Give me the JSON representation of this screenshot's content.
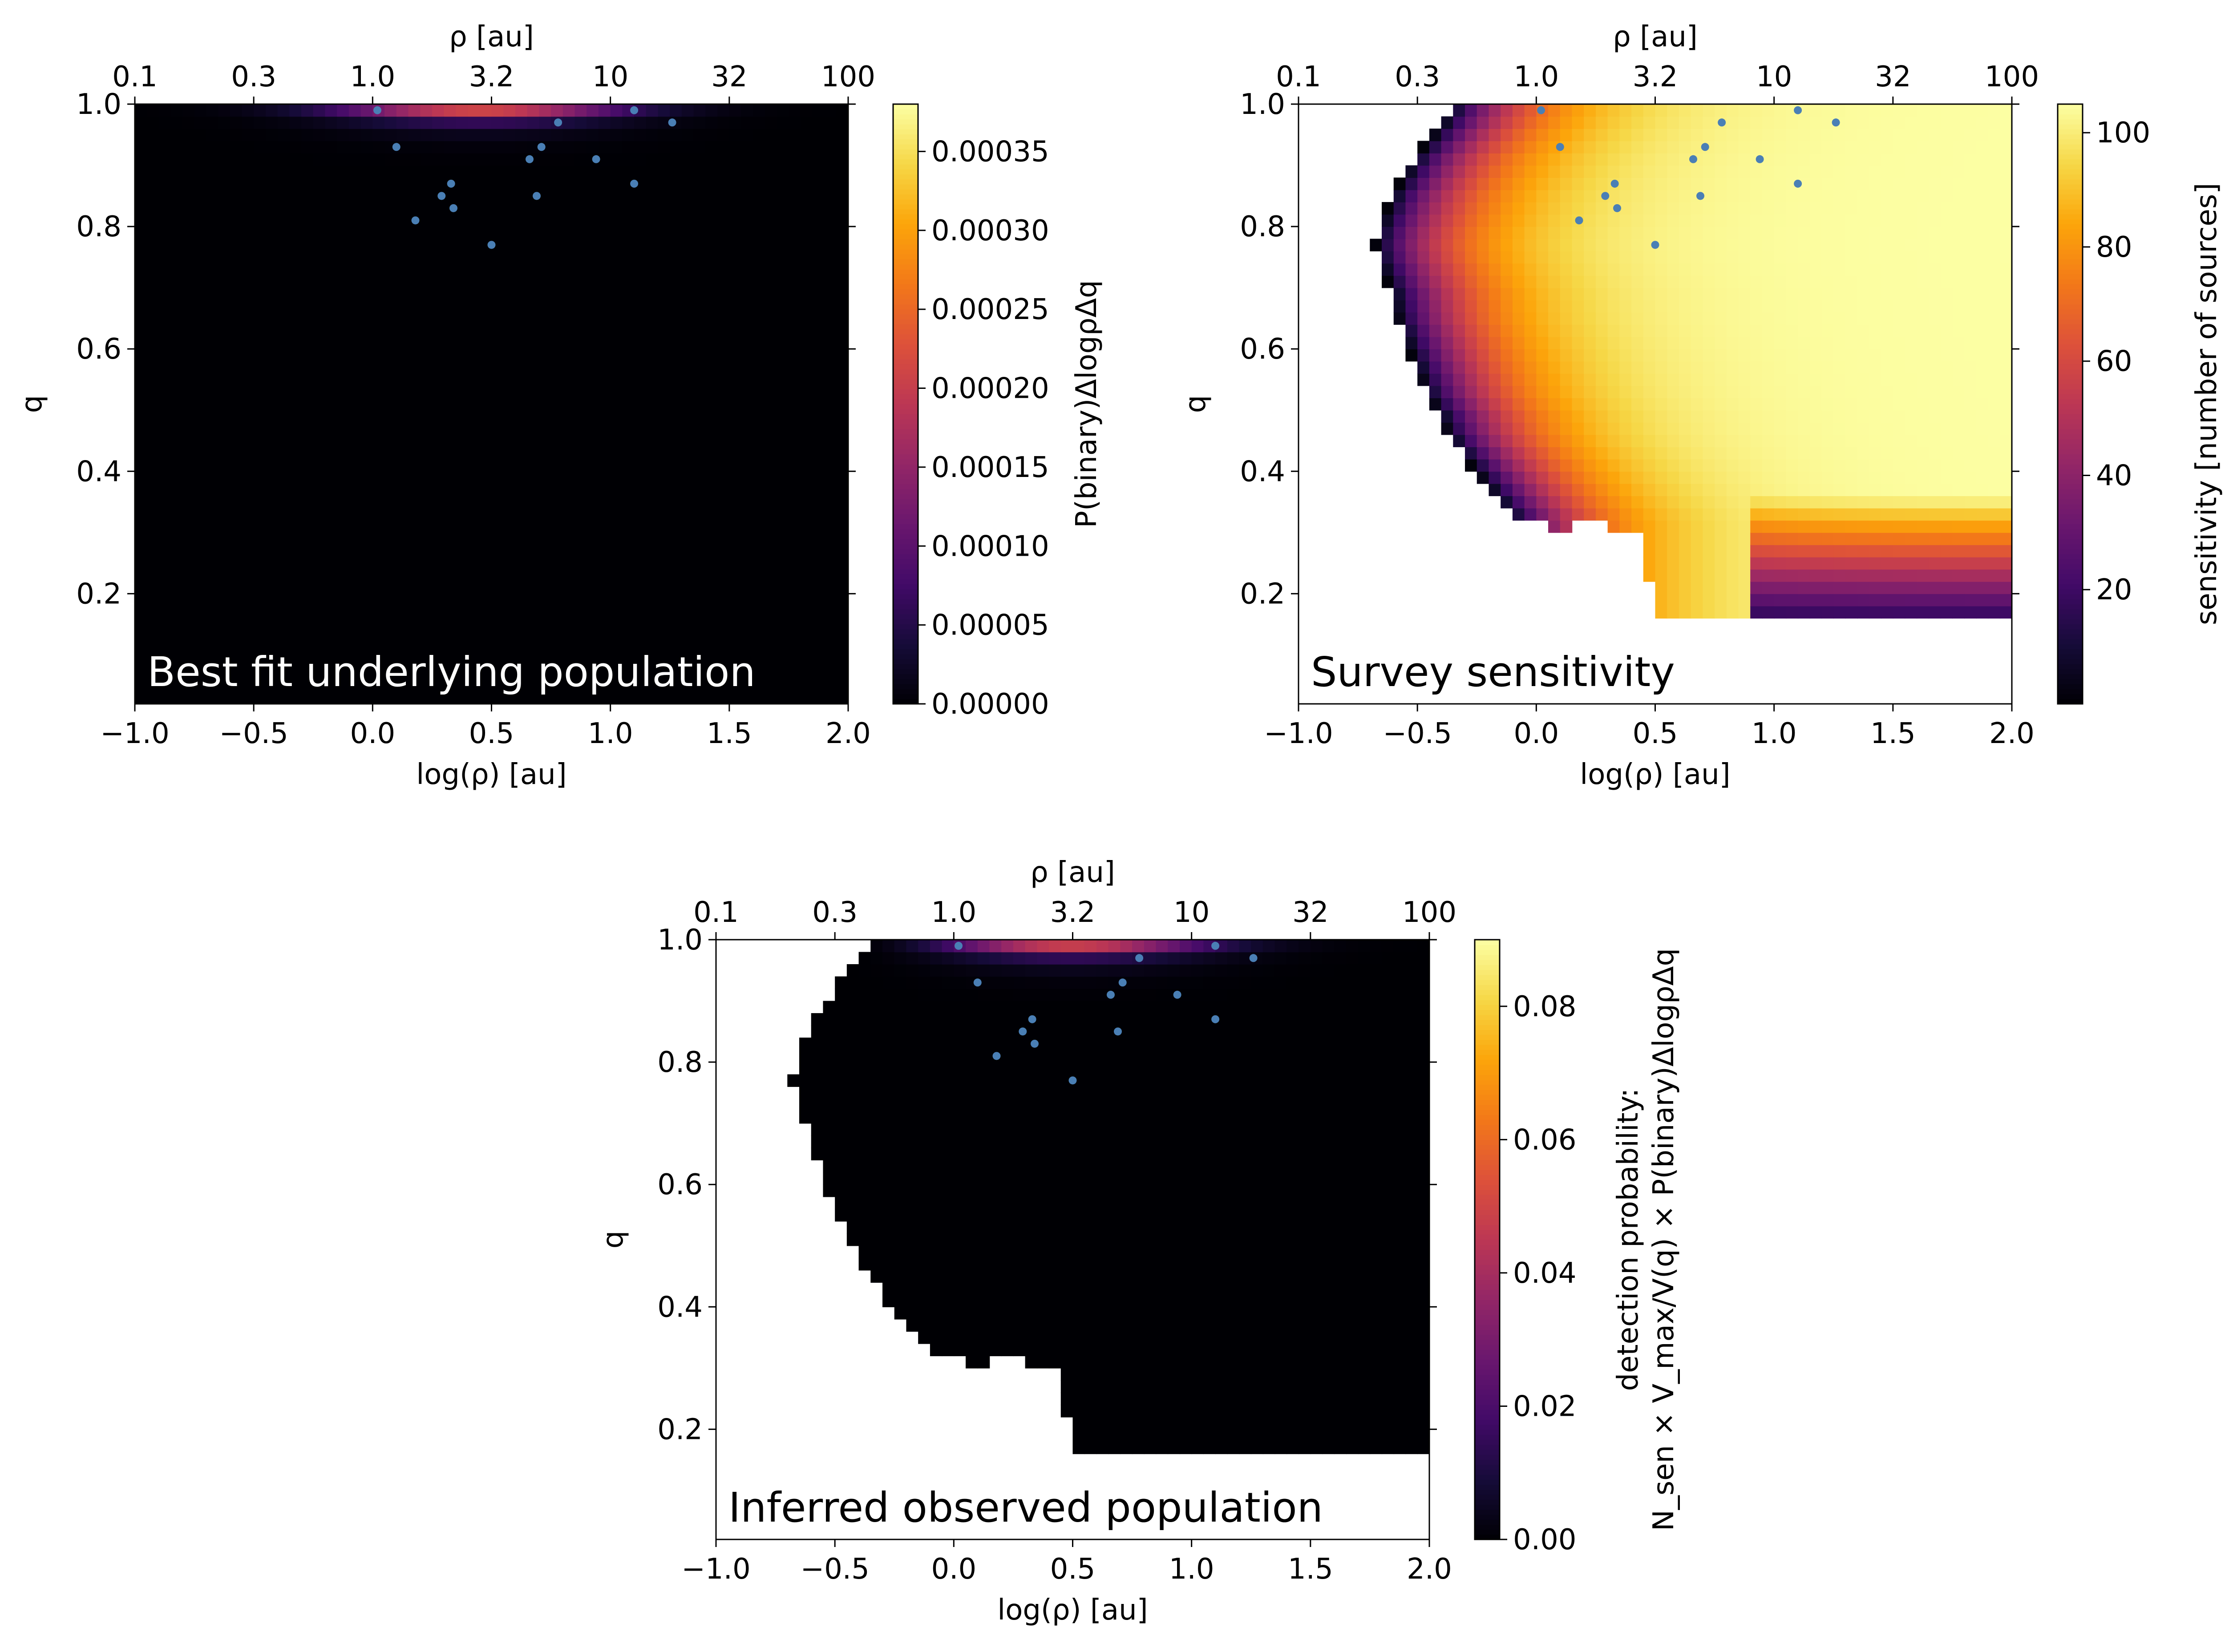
{
  "chart_data": [
    {
      "type": "heatmap",
      "panel_label": "Best fit underlying population",
      "xlabel": "log(ρ) [au]",
      "ylabel": "q",
      "top_xlabel": "ρ [au]",
      "xlim": [
        -1.0,
        2.0
      ],
      "ylim": [
        0.02,
        1.0
      ],
      "x_ticks": [
        "−1.0",
        "−0.5",
        "0.0",
        "0.5",
        "1.0",
        "1.5",
        "2.0"
      ],
      "x_tick_values": [
        -1.0,
        -0.5,
        0.0,
        0.5,
        1.0,
        1.5,
        2.0
      ],
      "top_ticks": [
        "0.1",
        "0.3",
        "1.0",
        "3.2",
        "10",
        "32",
        "100"
      ],
      "y_ticks": [
        "0.2",
        "0.4",
        "0.6",
        "0.8",
        "1.0"
      ],
      "y_tick_values": [
        0.2,
        0.4,
        0.6,
        0.8,
        1.0
      ],
      "colorbar": {
        "label": "P(binary)ΔlogρΔq",
        "range": [
          0.0,
          0.00038
        ],
        "ticks": [
          "0.00000",
          "0.00005",
          "0.00010",
          "0.00015",
          "0.00020",
          "0.00025",
          "0.00030",
          "0.00035"
        ],
        "tick_values": [
          0.0,
          5e-05,
          0.0001,
          0.00015,
          0.0002,
          0.00025,
          0.0003,
          0.00035
        ]
      },
      "model": {
        "peak": 0.00038,
        "log_rho_center": 0.45,
        "log_rho_sigma": 0.42,
        "q_power": 60
      },
      "points": [
        {
          "x": 0.02,
          "y": 0.99
        },
        {
          "x": 0.1,
          "y": 0.93
        },
        {
          "x": 0.18,
          "y": 0.81
        },
        {
          "x": 0.29,
          "y": 0.85
        },
        {
          "x": 0.33,
          "y": 0.87
        },
        {
          "x": 0.34,
          "y": 0.83
        },
        {
          "x": 0.5,
          "y": 0.77
        },
        {
          "x": 0.66,
          "y": 0.91
        },
        {
          "x": 0.69,
          "y": 0.85
        },
        {
          "x": 0.71,
          "y": 0.93
        },
        {
          "x": 0.78,
          "y": 0.97
        },
        {
          "x": 0.94,
          "y": 0.91
        },
        {
          "x": 1.1,
          "y": 0.87
        },
        {
          "x": 1.1,
          "y": 0.99
        },
        {
          "x": 1.26,
          "y": 0.97
        }
      ]
    },
    {
      "type": "heatmap",
      "panel_label": "Survey sensitivity",
      "xlabel": "log(ρ) [au]",
      "ylabel": "q",
      "top_xlabel": "ρ [au]",
      "xlim": [
        -1.0,
        2.0
      ],
      "ylim": [
        0.02,
        1.0
      ],
      "x_ticks": [
        "−1.0",
        "−0.5",
        "0.0",
        "0.5",
        "1.0",
        "1.5",
        "2.0"
      ],
      "x_tick_values": [
        -1.0,
        -0.5,
        0.0,
        0.5,
        1.0,
        1.5,
        2.0
      ],
      "top_ticks": [
        "0.1",
        "0.3",
        "1.0",
        "3.2",
        "10",
        "32",
        "100"
      ],
      "y_ticks": [
        "0.2",
        "0.4",
        "0.6",
        "0.8",
        "1.0"
      ],
      "y_tick_values": [
        0.2,
        0.4,
        0.6,
        0.8,
        1.0
      ],
      "colorbar": {
        "label": "sensitivity [number of sources]",
        "range": [
          0,
          105
        ],
        "ticks": [
          "20",
          "40",
          "60",
          "80",
          "100"
        ],
        "tick_values": [
          20,
          40,
          60,
          80,
          100
        ]
      },
      "max_sources": 105,
      "points": [
        {
          "x": 0.02,
          "y": 0.99
        },
        {
          "x": 0.1,
          "y": 0.93
        },
        {
          "x": 0.18,
          "y": 0.81
        },
        {
          "x": 0.29,
          "y": 0.85
        },
        {
          "x": 0.33,
          "y": 0.87
        },
        {
          "x": 0.34,
          "y": 0.83
        },
        {
          "x": 0.5,
          "y": 0.77
        },
        {
          "x": 0.66,
          "y": 0.91
        },
        {
          "x": 0.69,
          "y": 0.85
        },
        {
          "x": 0.71,
          "y": 0.93
        },
        {
          "x": 0.78,
          "y": 0.97
        },
        {
          "x": 0.94,
          "y": 0.91
        },
        {
          "x": 1.1,
          "y": 0.87
        },
        {
          "x": 1.1,
          "y": 0.99
        },
        {
          "x": 1.26,
          "y": 0.97
        }
      ]
    },
    {
      "type": "heatmap",
      "panel_label": "Inferred observed population",
      "xlabel": "log(ρ) [au]",
      "ylabel": "q",
      "top_xlabel": "ρ [au]",
      "xlim": [
        -1.0,
        2.0
      ],
      "ylim": [
        0.02,
        1.0
      ],
      "x_ticks": [
        "−1.0",
        "−0.5",
        "0.0",
        "0.5",
        "1.0",
        "1.5",
        "2.0"
      ],
      "x_tick_values": [
        -1.0,
        -0.5,
        0.0,
        0.5,
        1.0,
        1.5,
        2.0
      ],
      "top_ticks": [
        "0.1",
        "0.3",
        "1.0",
        "3.2",
        "10",
        "32",
        "100"
      ],
      "y_ticks": [
        "0.2",
        "0.4",
        "0.6",
        "0.8",
        "1.0"
      ],
      "y_tick_values": [
        0.2,
        0.4,
        0.6,
        0.8,
        1.0
      ],
      "colorbar": {
        "label_line1": "detection probability:",
        "label_line2": "N_sen × V_max/V(q) × P(binary)ΔlogρΔq",
        "range": [
          0.0,
          0.09
        ],
        "ticks": [
          "0.00",
          "0.02",
          "0.04",
          "0.06",
          "0.08"
        ],
        "tick_values": [
          0.0,
          0.02,
          0.04,
          0.06,
          0.08
        ]
      },
      "peak": 0.09,
      "points": [
        {
          "x": 0.02,
          "y": 0.99
        },
        {
          "x": 0.1,
          "y": 0.93
        },
        {
          "x": 0.18,
          "y": 0.81
        },
        {
          "x": 0.29,
          "y": 0.85
        },
        {
          "x": 0.33,
          "y": 0.87
        },
        {
          "x": 0.34,
          "y": 0.83
        },
        {
          "x": 0.5,
          "y": 0.77
        },
        {
          "x": 0.66,
          "y": 0.91
        },
        {
          "x": 0.69,
          "y": 0.85
        },
        {
          "x": 0.71,
          "y": 0.93
        },
        {
          "x": 0.78,
          "y": 0.97
        },
        {
          "x": 0.94,
          "y": 0.91
        },
        {
          "x": 1.1,
          "y": 0.87
        },
        {
          "x": 1.1,
          "y": 0.99
        },
        {
          "x": 1.26,
          "y": 0.97
        }
      ]
    }
  ],
  "sensitivity_boundary": {
    "description_left_edge_q": [
      1.0,
      0.98,
      0.96,
      0.94,
      0.92,
      0.9,
      0.88,
      0.86,
      0.84,
      0.82,
      0.8,
      0.78,
      0.76,
      0.74,
      0.72,
      0.7,
      0.68,
      0.66,
      0.64,
      0.62,
      0.6,
      0.58,
      0.56,
      0.54,
      0.52,
      0.5,
      0.48,
      0.46,
      0.44,
      0.42,
      0.4,
      0.38,
      0.36,
      0.34,
      0.32,
      0.3
    ],
    "description_left_edge_logrho": [
      -0.36,
      -0.38,
      -0.42,
      -0.46,
      -0.5,
      -0.54,
      -0.56,
      -0.6,
      -0.62,
      -0.64,
      -0.66,
      -0.68,
      -0.68,
      -0.66,
      -0.64,
      -0.62,
      -0.6,
      -0.6,
      -0.58,
      -0.56,
      -0.54,
      -0.52,
      -0.5,
      -0.48,
      -0.46,
      -0.42,
      -0.4,
      -0.38,
      -0.34,
      -0.3,
      -0.26,
      -0.22,
      -0.18,
      -0.14,
      -0.1,
      -0.06
    ],
    "bottom_steps": [
      {
        "x0": -0.1,
        "x1": 0.06,
        "q": 0.32
      },
      {
        "x0": 0.06,
        "x1": 0.14,
        "q": 0.3
      },
      {
        "x0": 0.14,
        "x1": 0.3,
        "q": 0.32
      },
      {
        "x0": 0.3,
        "x1": 0.46,
        "q": 0.3
      },
      {
        "x0": 0.46,
        "x1": 0.52,
        "q": 0.22
      },
      {
        "x0": 0.52,
        "x1": 2.0,
        "q": 0.16
      }
    ]
  },
  "colors": {
    "scatter": "#4a7fb5",
    "background": "#000004"
  }
}
